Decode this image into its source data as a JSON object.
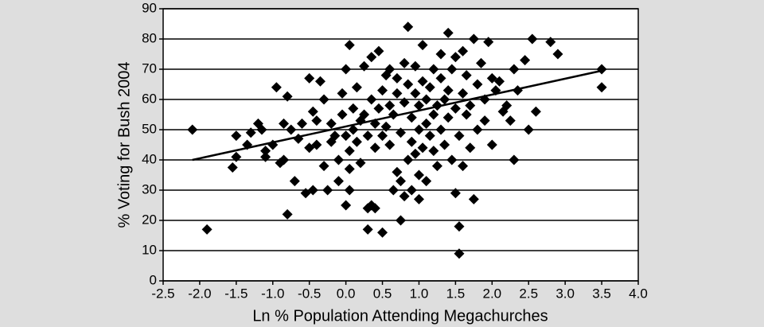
{
  "chart_data": {
    "type": "scatter",
    "x_label": "Ln % Population Attending Megachurches",
    "y_label": "% Voting for Bush 2004",
    "color": "#000000",
    "x": [
      -2.1,
      -1.9,
      -1.55,
      -1.5,
      -1.5,
      -1.35,
      -1.3,
      -1.2,
      -1.15,
      -1.1,
      -1.1,
      -1.0,
      -0.95,
      -0.9,
      -0.85,
      -0.85,
      -0.8,
      -0.8,
      -0.75,
      -0.7,
      -0.65,
      -0.6,
      -0.55,
      -0.5,
      -0.5,
      -0.45,
      -0.45,
      -0.4,
      -0.4,
      -0.35,
      -0.3,
      -0.3,
      -0.25,
      -0.2,
      -0.2,
      -0.15,
      -0.1,
      -0.1,
      -0.05,
      -0.05,
      0,
      0,
      0,
      0.05,
      0.05,
      0.05,
      0.05,
      0.1,
      0.1,
      0.15,
      0.15,
      0.2,
      0.2,
      0.25,
      0.25,
      0.3,
      0.3,
      0.3,
      0.35,
      0.35,
      0.35,
      0.4,
      0.4,
      0.4,
      0.45,
      0.45,
      0.5,
      0.5,
      0.5,
      0.55,
      0.55,
      0.6,
      0.6,
      0.6,
      0.65,
      0.65,
      0.7,
      0.7,
      0.7,
      0.75,
      0.75,
      0.75,
      0.8,
      0.8,
      0.8,
      0.85,
      0.85,
      0.85,
      0.9,
      0.9,
      0.9,
      0.95,
      0.95,
      0.95,
      1.0,
      1.0,
      1.0,
      1.0,
      1.05,
      1.05,
      1.05,
      1.1,
      1.1,
      1.1,
      1.15,
      1.15,
      1.2,
      1.2,
      1.2,
      1.25,
      1.25,
      1.3,
      1.3,
      1.3,
      1.35,
      1.35,
      1.4,
      1.4,
      1.4,
      1.45,
      1.45,
      1.5,
      1.5,
      1.5,
      1.55,
      1.55,
      1.55,
      1.6,
      1.6,
      1.6,
      1.65,
      1.65,
      1.7,
      1.7,
      1.75,
      1.75,
      1.8,
      1.8,
      1.85,
      1.9,
      1.9,
      1.95,
      2.0,
      2.0,
      2.05,
      2.1,
      2.15,
      2.2,
      2.25,
      2.3,
      2.3,
      2.35,
      2.45,
      2.5,
      2.55,
      2.6,
      2.8,
      2.9,
      3.5,
      3.5
    ],
    "values": [
      50,
      17,
      37.5,
      41,
      48,
      45,
      49,
      52,
      50,
      41,
      43,
      45,
      64,
      39,
      40,
      52,
      22,
      61,
      50,
      33,
      47,
      52,
      29,
      67,
      44,
      30,
      56,
      45,
      53,
      66,
      38,
      60,
      30,
      46,
      52,
      48,
      33,
      40,
      55,
      62,
      25,
      48,
      70,
      30,
      37,
      43,
      78,
      50,
      57,
      46,
      64,
      53,
      39,
      55,
      71,
      17,
      24,
      48,
      25,
      60,
      74,
      24,
      44,
      52,
      57,
      76,
      16,
      48,
      63,
      51,
      68,
      45,
      58,
      70,
      30,
      55,
      36,
      62,
      67,
      20,
      33,
      49,
      28,
      59,
      72,
      84,
      40,
      65,
      30,
      46,
      54,
      42,
      62,
      71,
      27,
      35,
      50,
      58,
      44,
      66,
      78,
      52,
      60,
      33,
      48,
      64,
      55,
      70,
      43,
      58,
      38,
      50,
      67,
      75,
      60,
      45,
      82,
      54,
      63,
      70,
      40,
      57,
      74,
      29,
      9,
      18,
      48,
      62,
      38,
      76,
      55,
      68,
      44,
      58,
      80,
      27,
      50,
      65,
      72,
      53,
      60,
      79,
      45,
      67,
      63,
      66,
      56,
      58,
      53,
      40,
      70,
      63,
      73,
      50,
      80,
      56,
      79,
      75,
      70,
      64
    ],
    "trend": {
      "x": [
        -2.1,
        3.5
      ],
      "y": [
        40,
        69.5
      ]
    },
    "xlim": [
      -2.5,
      4.0
    ],
    "xticks": [
      -2.5,
      {
        "value": -2.0,
        "label": "-2.0"
      },
      -1.5,
      {
        "value": -1.0,
        "label": "-1.0"
      },
      -0.5,
      {
        "value": 0,
        "label": "0.0"
      },
      0.5,
      {
        "value": 1.0,
        "label": "1.0"
      },
      1.5,
      {
        "value": 2.0,
        "label": "2.0"
      },
      2.5,
      {
        "value": 3.0,
        "label": "3.0"
      },
      3.5,
      {
        "value": 4.0,
        "label": "4.0"
      }
    ],
    "ylim": [
      0,
      90
    ],
    "yticks": [
      0,
      10,
      20,
      30,
      40,
      50,
      60,
      70,
      80,
      90
    ],
    "grid": true
  }
}
